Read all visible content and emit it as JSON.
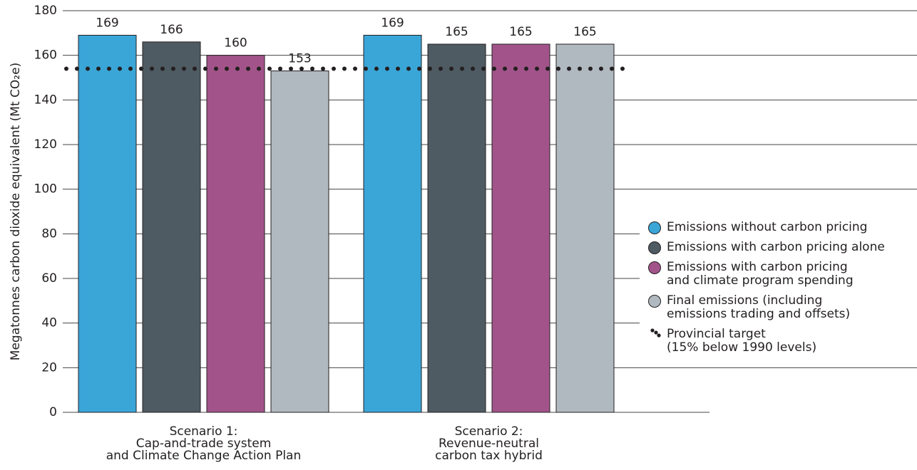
{
  "chart_data": {
    "type": "bar",
    "y_label": "Megatonnes carbon dioxide equivalent (Mt CO₂e)",
    "categories": [
      [
        "Scenario 1:",
        "Cap-and-trade system",
        "and Climate Change Action Plan"
      ],
      [
        "Scenario 2:",
        "Revenue-neutral",
        "carbon tax hybrid"
      ]
    ],
    "series": [
      {
        "name": "Emissions without carbon pricing",
        "color": "#3aa6d8",
        "values": [
          169,
          169
        ]
      },
      {
        "name": "Emissions with carbon pricing alone",
        "color": "#4f5b63",
        "values": [
          166,
          165
        ]
      },
      {
        "name": "Emissions with carbon pricing\nand climate program spending",
        "color": "#a2548a",
        "values": [
          160,
          165
        ]
      },
      {
        "name": "Final emissions (including\nemissions trading and offsets)",
        "color": "#b1b9c0",
        "values": [
          153,
          165
        ]
      }
    ],
    "target": {
      "name": "Provincial target\n(15% below 1990 levels)",
      "value": 154,
      "color": "#231f20"
    },
    "ylim": [
      0,
      180
    ],
    "yticks": [
      0,
      20,
      40,
      60,
      80,
      100,
      120,
      140,
      160,
      180
    ],
    "grid": true
  }
}
